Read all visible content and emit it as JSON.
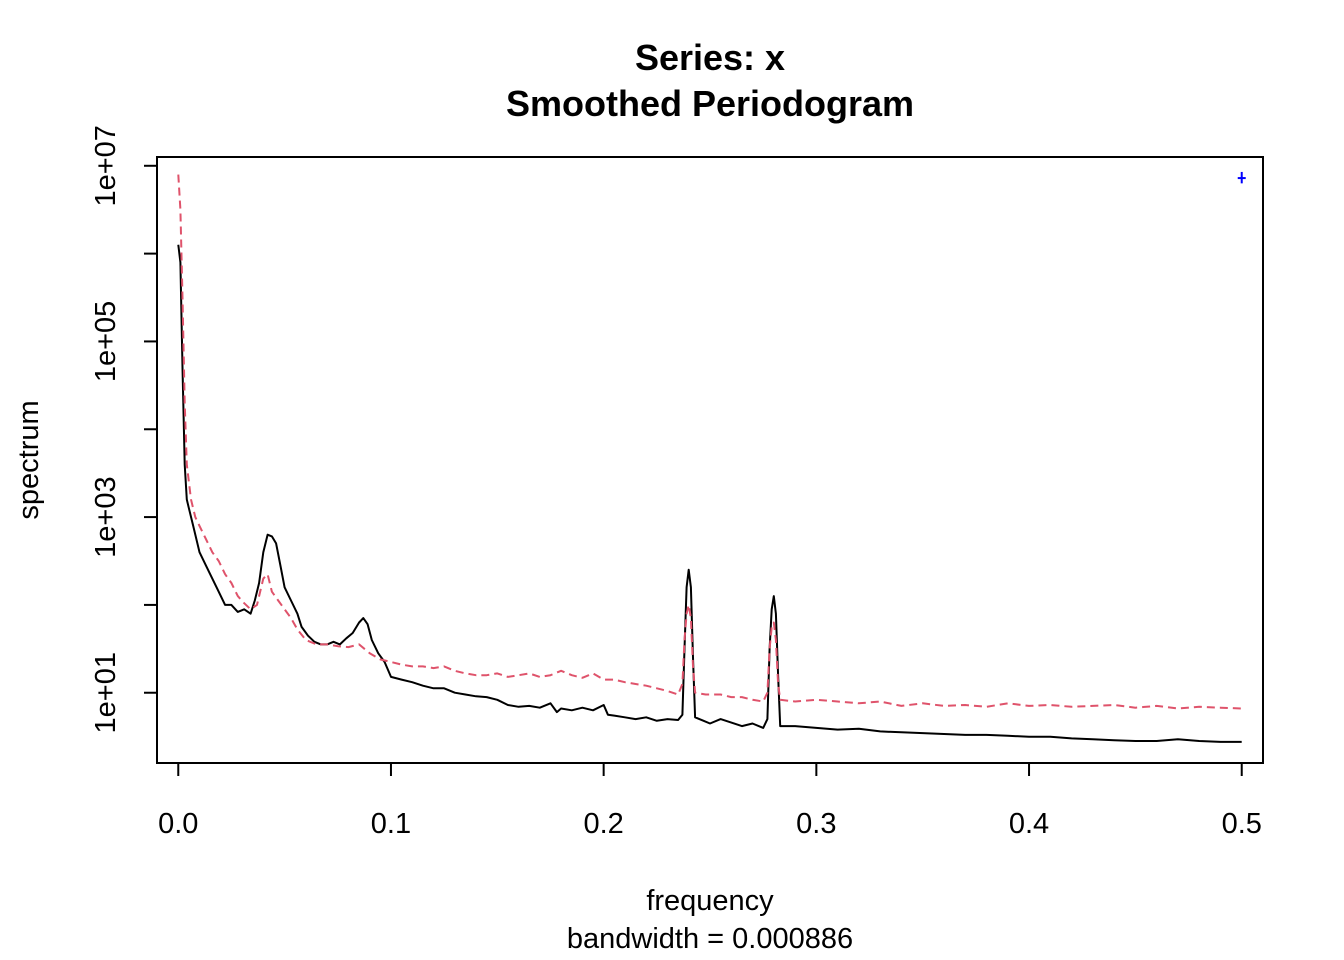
{
  "chart_data": {
    "type": "line",
    "title": "Series: x",
    "subtitle": "Smoothed Periodogram",
    "xlabel": "frequency",
    "xsublabel": "bandwidth = 0.000886",
    "ylabel": "spectrum",
    "y_scale": "log10",
    "xlim": [
      -0.01,
      0.51
    ],
    "ylim_log10": [
      0.2,
      7.1
    ],
    "x_ticks": [
      0,
      0.1,
      0.2,
      0.3,
      0.4,
      0.5
    ],
    "x_tick_labels": [
      "0.0",
      "0.1",
      "0.2",
      "0.3",
      "0.4",
      "0.5"
    ],
    "y_ticks_log10": [
      1,
      2,
      3,
      4,
      5,
      6,
      7
    ],
    "y_tick_labels": [
      {
        "log10": 1,
        "label": "1e+01"
      },
      {
        "log10": 3,
        "label": "1e+03"
      },
      {
        "log10": 5,
        "label": "1e+05"
      },
      {
        "log10": 7,
        "label": "1e+07"
      }
    ],
    "grid": false,
    "series": [
      {
        "color": "#000000",
        "dash": "solid",
        "points_log10": [
          [
            0.0,
            6.1
          ],
          [
            0.001,
            5.9
          ],
          [
            0.002,
            4.7
          ],
          [
            0.003,
            3.6
          ],
          [
            0.004,
            3.2
          ],
          [
            0.005,
            3.1
          ],
          [
            0.007,
            2.9
          ],
          [
            0.01,
            2.6
          ],
          [
            0.013,
            2.45
          ],
          [
            0.016,
            2.3
          ],
          [
            0.019,
            2.15
          ],
          [
            0.022,
            2.0
          ],
          [
            0.025,
            2.0
          ],
          [
            0.028,
            1.92
          ],
          [
            0.031,
            1.95
          ],
          [
            0.034,
            1.9
          ],
          [
            0.036,
            2.05
          ],
          [
            0.038,
            2.25
          ],
          [
            0.04,
            2.6
          ],
          [
            0.042,
            2.8
          ],
          [
            0.044,
            2.78
          ],
          [
            0.046,
            2.7
          ],
          [
            0.048,
            2.45
          ],
          [
            0.05,
            2.2
          ],
          [
            0.053,
            2.05
          ],
          [
            0.056,
            1.9
          ],
          [
            0.058,
            1.75
          ],
          [
            0.061,
            1.65
          ],
          [
            0.064,
            1.58
          ],
          [
            0.067,
            1.55
          ],
          [
            0.07,
            1.55
          ],
          [
            0.073,
            1.58
          ],
          [
            0.076,
            1.55
          ],
          [
            0.079,
            1.62
          ],
          [
            0.082,
            1.68
          ],
          [
            0.085,
            1.8
          ],
          [
            0.087,
            1.85
          ],
          [
            0.089,
            1.78
          ],
          [
            0.091,
            1.6
          ],
          [
            0.094,
            1.45
          ],
          [
            0.097,
            1.35
          ],
          [
            0.1,
            1.18
          ],
          [
            0.105,
            1.15
          ],
          [
            0.11,
            1.12
          ],
          [
            0.115,
            1.08
          ],
          [
            0.12,
            1.05
          ],
          [
            0.125,
            1.05
          ],
          [
            0.13,
            1.0
          ],
          [
            0.135,
            0.98
          ],
          [
            0.14,
            0.96
          ],
          [
            0.145,
            0.95
          ],
          [
            0.15,
            0.92
          ],
          [
            0.155,
            0.86
          ],
          [
            0.16,
            0.84
          ],
          [
            0.165,
            0.85
          ],
          [
            0.17,
            0.83
          ],
          [
            0.175,
            0.88
          ],
          [
            0.178,
            0.78
          ],
          [
            0.18,
            0.82
          ],
          [
            0.185,
            0.8
          ],
          [
            0.19,
            0.83
          ],
          [
            0.195,
            0.8
          ],
          [
            0.2,
            0.86
          ],
          [
            0.202,
            0.75
          ],
          [
            0.205,
            0.74
          ],
          [
            0.21,
            0.72
          ],
          [
            0.215,
            0.7
          ],
          [
            0.22,
            0.72
          ],
          [
            0.225,
            0.68
          ],
          [
            0.23,
            0.7
          ],
          [
            0.235,
            0.69
          ],
          [
            0.237,
            0.75
          ],
          [
            0.238,
            1.5
          ],
          [
            0.239,
            2.2
          ],
          [
            0.24,
            2.4
          ],
          [
            0.241,
            2.2
          ],
          [
            0.242,
            1.4
          ],
          [
            0.243,
            0.72
          ],
          [
            0.247,
            0.68
          ],
          [
            0.25,
            0.65
          ],
          [
            0.255,
            0.7
          ],
          [
            0.26,
            0.66
          ],
          [
            0.265,
            0.62
          ],
          [
            0.27,
            0.65
          ],
          [
            0.275,
            0.6
          ],
          [
            0.277,
            0.7
          ],
          [
            0.278,
            1.5
          ],
          [
            0.279,
            1.95
          ],
          [
            0.28,
            2.1
          ],
          [
            0.281,
            1.9
          ],
          [
            0.282,
            1.2
          ],
          [
            0.283,
            0.62
          ],
          [
            0.29,
            0.62
          ],
          [
            0.3,
            0.6
          ],
          [
            0.31,
            0.58
          ],
          [
            0.32,
            0.59
          ],
          [
            0.33,
            0.56
          ],
          [
            0.34,
            0.55
          ],
          [
            0.35,
            0.54
          ],
          [
            0.36,
            0.53
          ],
          [
            0.37,
            0.52
          ],
          [
            0.38,
            0.52
          ],
          [
            0.39,
            0.51
          ],
          [
            0.4,
            0.5
          ],
          [
            0.41,
            0.5
          ],
          [
            0.42,
            0.48
          ],
          [
            0.43,
            0.47
          ],
          [
            0.44,
            0.46
          ],
          [
            0.45,
            0.45
          ],
          [
            0.46,
            0.45
          ],
          [
            0.47,
            0.47
          ],
          [
            0.48,
            0.45
          ],
          [
            0.49,
            0.44
          ],
          [
            0.5,
            0.44
          ]
        ]
      },
      {
        "color": "#DF536B",
        "dash": "dashed",
        "points_log10": [
          [
            0.0,
            6.9
          ],
          [
            0.001,
            6.5
          ],
          [
            0.002,
            5.5
          ],
          [
            0.003,
            4.3
          ],
          [
            0.004,
            3.6
          ],
          [
            0.006,
            3.2
          ],
          [
            0.008,
            3.0
          ],
          [
            0.01,
            2.9
          ],
          [
            0.013,
            2.75
          ],
          [
            0.016,
            2.6
          ],
          [
            0.019,
            2.5
          ],
          [
            0.022,
            2.35
          ],
          [
            0.025,
            2.25
          ],
          [
            0.028,
            2.1
          ],
          [
            0.031,
            2.02
          ],
          [
            0.034,
            1.95
          ],
          [
            0.037,
            2.0
          ],
          [
            0.04,
            2.3
          ],
          [
            0.042,
            2.35
          ],
          [
            0.044,
            2.15
          ],
          [
            0.047,
            2.05
          ],
          [
            0.05,
            1.95
          ],
          [
            0.053,
            1.85
          ],
          [
            0.056,
            1.72
          ],
          [
            0.06,
            1.6
          ],
          [
            0.065,
            1.55
          ],
          [
            0.07,
            1.55
          ],
          [
            0.075,
            1.53
          ],
          [
            0.08,
            1.52
          ],
          [
            0.085,
            1.55
          ],
          [
            0.09,
            1.45
          ],
          [
            0.095,
            1.38
          ],
          [
            0.1,
            1.35
          ],
          [
            0.105,
            1.32
          ],
          [
            0.11,
            1.3
          ],
          [
            0.115,
            1.3
          ],
          [
            0.12,
            1.28
          ],
          [
            0.125,
            1.3
          ],
          [
            0.13,
            1.25
          ],
          [
            0.135,
            1.22
          ],
          [
            0.14,
            1.2
          ],
          [
            0.145,
            1.2
          ],
          [
            0.15,
            1.22
          ],
          [
            0.155,
            1.18
          ],
          [
            0.16,
            1.2
          ],
          [
            0.165,
            1.22
          ],
          [
            0.17,
            1.18
          ],
          [
            0.175,
            1.2
          ],
          [
            0.18,
            1.25
          ],
          [
            0.185,
            1.2
          ],
          [
            0.19,
            1.17
          ],
          [
            0.195,
            1.22
          ],
          [
            0.2,
            1.15
          ],
          [
            0.205,
            1.15
          ],
          [
            0.21,
            1.12
          ],
          [
            0.215,
            1.1
          ],
          [
            0.22,
            1.08
          ],
          [
            0.225,
            1.05
          ],
          [
            0.23,
            1.02
          ],
          [
            0.235,
            0.98
          ],
          [
            0.237,
            1.1
          ],
          [
            0.238,
            1.6
          ],
          [
            0.239,
            1.9
          ],
          [
            0.24,
            2.0
          ],
          [
            0.241,
            1.85
          ],
          [
            0.242,
            1.3
          ],
          [
            0.243,
            1.0
          ],
          [
            0.248,
            0.98
          ],
          [
            0.255,
            0.98
          ],
          [
            0.26,
            0.95
          ],
          [
            0.265,
            0.95
          ],
          [
            0.27,
            0.92
          ],
          [
            0.275,
            0.9
          ],
          [
            0.277,
            1.0
          ],
          [
            0.278,
            1.5
          ],
          [
            0.279,
            1.75
          ],
          [
            0.28,
            1.8
          ],
          [
            0.281,
            1.6
          ],
          [
            0.282,
            1.1
          ],
          [
            0.283,
            0.92
          ],
          [
            0.29,
            0.9
          ],
          [
            0.3,
            0.92
          ],
          [
            0.31,
            0.9
          ],
          [
            0.32,
            0.88
          ],
          [
            0.33,
            0.9
          ],
          [
            0.34,
            0.85
          ],
          [
            0.35,
            0.88
          ],
          [
            0.36,
            0.85
          ],
          [
            0.37,
            0.86
          ],
          [
            0.38,
            0.84
          ],
          [
            0.39,
            0.88
          ],
          [
            0.4,
            0.85
          ],
          [
            0.41,
            0.86
          ],
          [
            0.42,
            0.84
          ],
          [
            0.43,
            0.85
          ],
          [
            0.44,
            0.86
          ],
          [
            0.45,
            0.83
          ],
          [
            0.46,
            0.85
          ],
          [
            0.47,
            0.82
          ],
          [
            0.48,
            0.84
          ],
          [
            0.49,
            0.83
          ],
          [
            0.5,
            0.82
          ]
        ]
      }
    ],
    "ci_bar": {
      "x": 0.5,
      "center_log10": 6.86,
      "low_log10": 6.8,
      "high_log10": 6.93,
      "color": "#0000FF"
    }
  }
}
